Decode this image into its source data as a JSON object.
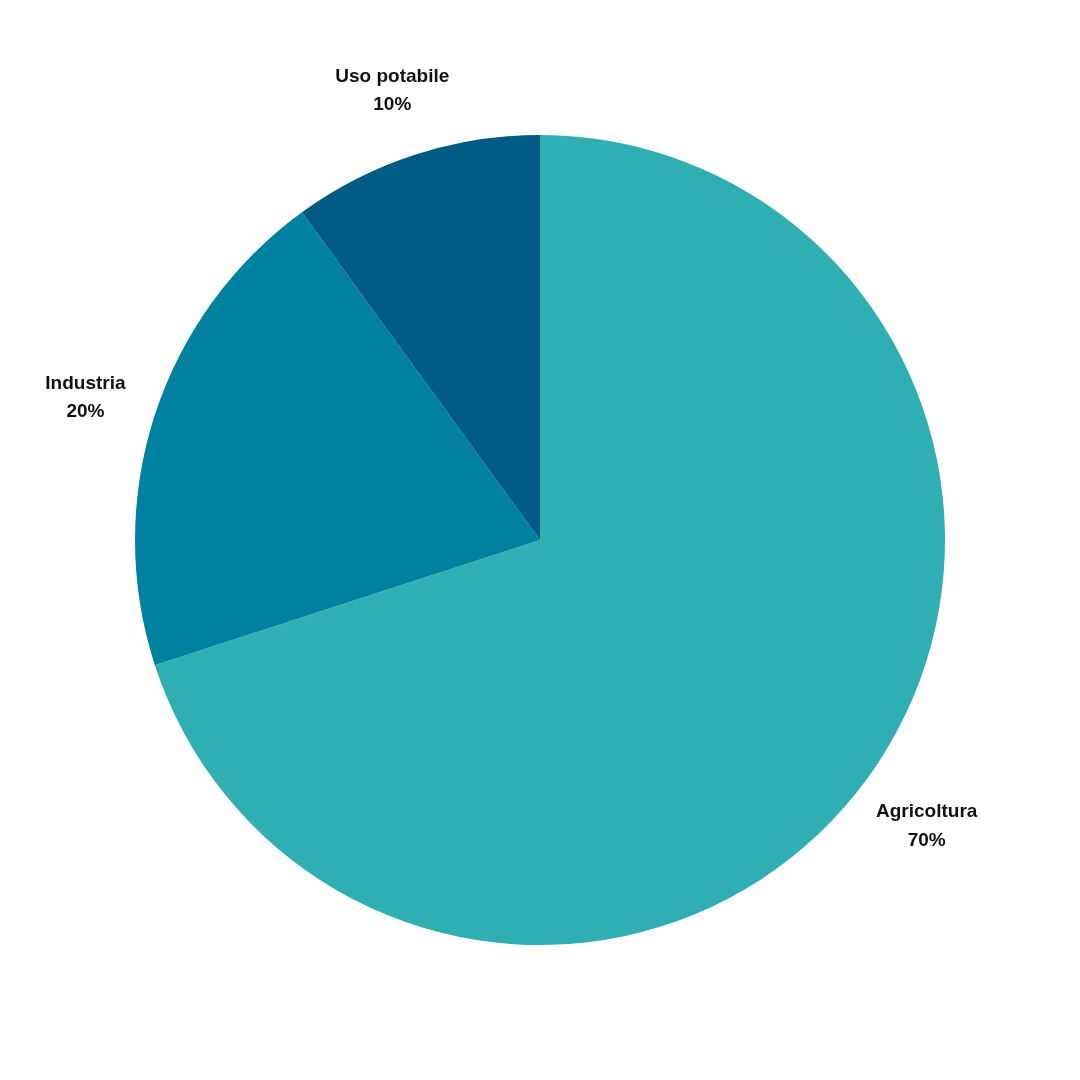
{
  "chart_data": {
    "type": "pie",
    "categories": [
      "Agricoltura",
      "Industria",
      "Uso potabile"
    ],
    "values": [
      70,
      20,
      10
    ],
    "colors": [
      "#2fafb4",
      "#00819f",
      "#005b84"
    ],
    "value_labels": [
      "70%",
      "20%",
      "10%"
    ]
  }
}
